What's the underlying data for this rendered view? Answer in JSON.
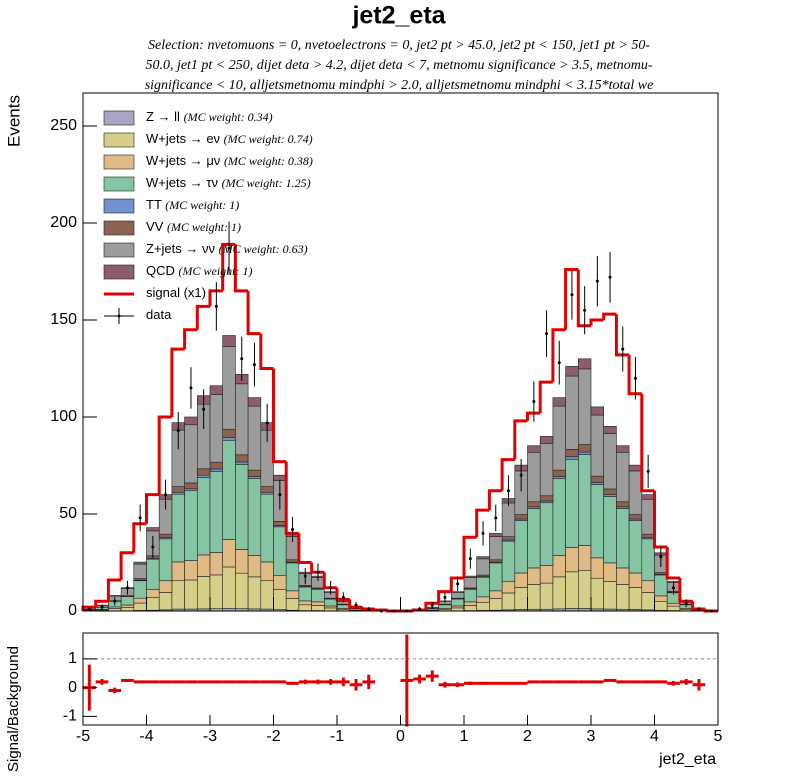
{
  "chart_data": [
    {
      "type": "stacked_histogram",
      "title": "jet2_eta",
      "subtitle": [
        "Selection: nvetomuons = 0, nvetoelectrons = 0, jet2 pt > 45.0, jet2 pt < 150, jet1 pt > 50-",
        "50.0, jet1 pt < 250, dijet deta > 4.2, dijet deta < 7, metnomu significance > 3.5, metnomu-",
        "significance < 10, alljetsmetnomu mindphi > 2.0, alljetsmetnomu mindphi < 3.15*total we"
      ],
      "y_label": "Events",
      "xlim": [
        -5,
        5
      ],
      "ylim": [
        0,
        267
      ],
      "yticks": [
        0,
        50,
        100,
        150,
        200,
        250
      ],
      "bins": [
        -5,
        -4.8,
        -4.6,
        -4.4,
        -4.2,
        -4,
        -3.8,
        -3.6,
        -3.4,
        -3.2,
        -3,
        -2.8,
        -2.6,
        -2.4,
        -2.2,
        -2,
        -1.8,
        -1.6,
        -1.4,
        -1.2,
        -1,
        -0.8,
        -0.6,
        -0.4,
        -0.2,
        0,
        0.2,
        0.4,
        0.6,
        0.8,
        1,
        1.2,
        1.4,
        1.6,
        1.8,
        2,
        2.2,
        2.4,
        2.6,
        2.8,
        3,
        3.2,
        3.4,
        3.6,
        3.8,
        4,
        4.2,
        4.4,
        4.6,
        4.8,
        5
      ],
      "series": [
        {
          "name": "Z → ll",
          "note": "(MC weight: 0.34)",
          "color": "#a9a5c5",
          "values": [
            0,
            0,
            0.1,
            0.1,
            0.3,
            0.4,
            0.6,
            1,
            1,
            1.1,
            1.2,
            1.4,
            1.2,
            1.1,
            1,
            0.7,
            0.4,
            0.2,
            0.2,
            0.1,
            0.1,
            0,
            0,
            0,
            0,
            0,
            0,
            0,
            0.1,
            0.1,
            0.2,
            0.3,
            0.4,
            0.6,
            0.8,
            0.9,
            0.9,
            1.1,
            1.3,
            1.3,
            1.1,
            1,
            0.9,
            0.8,
            0.6,
            0.3,
            0.2,
            0.1,
            0,
            0
          ]
        },
        {
          "name": "W+jets → eν",
          "note": "(MC weight: 0.74)",
          "color": "#d5cf8a",
          "values": [
            0.2,
            0.5,
            1.2,
            1.8,
            3.8,
            6.5,
            9,
            14.6,
            15,
            16.7,
            17.4,
            21.3,
            18.3,
            16.5,
            14.6,
            10.5,
            6,
            3,
            2.7,
            1.5,
            0.8,
            0.3,
            0.2,
            0.1,
            0,
            0,
            0.1,
            0.3,
            0.8,
            1.5,
            2.7,
            4.2,
            6,
            8.7,
            11.3,
            12.8,
            13.5,
            16.5,
            18.9,
            19.5,
            15.8,
            14.3,
            12.8,
            11.3,
            9,
            4.5,
            2.3,
            0.8,
            0.2,
            0
          ]
        },
        {
          "name": "W+jets → μν",
          "note": "(MC weight: 0.38)",
          "color": "#e0bb85",
          "values": [
            0.1,
            0.3,
            0.8,
            1.2,
            2.5,
            4.3,
            6,
            9.7,
            10,
            11.1,
            11.6,
            14.2,
            12.2,
            11,
            9.7,
            7,
            4,
            2,
            1.8,
            1,
            0.5,
            0.2,
            0.1,
            0.1,
            0,
            0,
            0.1,
            0.2,
            0.5,
            1,
            1.8,
            2.8,
            4,
            5.8,
            7.5,
            8.5,
            9,
            11,
            12.6,
            13,
            10.5,
            9.5,
            8.5,
            7.5,
            6,
            3,
            1.5,
            0.5,
            0.1,
            0
          ]
        },
        {
          "name": "W+jets → τν",
          "note": "(MC weight: 1.25)",
          "color": "#86c5a3",
          "values": [
            0.4,
            1.1,
            2.9,
            4.3,
            9,
            15.5,
            21.6,
            34.9,
            36,
            40,
            41.8,
            51.1,
            43.9,
            39.6,
            34.9,
            25.2,
            14.4,
            7.2,
            6.5,
            3.6,
            1.8,
            0.7,
            0.4,
            0.2,
            0,
            0,
            0.2,
            0.7,
            1.8,
            3.6,
            6.5,
            10.1,
            14.4,
            20.9,
            27,
            30.6,
            32.4,
            39.6,
            45.4,
            46.8,
            37.8,
            34.2,
            30.6,
            27,
            21.6,
            10.8,
            5.4,
            1.8,
            0.4,
            0
          ]
        },
        {
          "name": "TT",
          "note": "(MC weight: 1)",
          "color": "#7391cc",
          "values": [
            0,
            0,
            0.1,
            0.1,
            0.3,
            0.4,
            0.6,
            1,
            1,
            1.1,
            1.2,
            1.4,
            1.2,
            1.1,
            1,
            0.7,
            0.4,
            0.2,
            0.2,
            0.1,
            0.1,
            0,
            0,
            0,
            0,
            0,
            0,
            0,
            0.1,
            0.1,
            0.2,
            0.3,
            0.4,
            0.6,
            0.8,
            0.9,
            0.9,
            1.1,
            1.3,
            1.3,
            1.1,
            1,
            0.9,
            0.8,
            0.6,
            0.3,
            0.2,
            0.1,
            0,
            0
          ]
        },
        {
          "name": "VV",
          "note": "(MC weight: 1)",
          "color": "#8c6350",
          "values": [
            0,
            0.1,
            0.2,
            0.4,
            0.8,
            1.3,
            1.8,
            2.9,
            3,
            3.3,
            3.5,
            4.3,
            3.7,
            3.3,
            2.9,
            2.1,
            1.2,
            0.6,
            0.5,
            0.3,
            0.2,
            0.1,
            0,
            0,
            0,
            0,
            0,
            0.1,
            0.2,
            0.3,
            0.5,
            0.8,
            1.2,
            1.7,
            2.3,
            2.6,
            2.7,
            3.3,
            3.8,
            3.9,
            3.2,
            2.9,
            2.6,
            2.3,
            1.8,
            0.9,
            0.5,
            0.2,
            0,
            0
          ]
        },
        {
          "name": "Z+jets → νν",
          "note": "(MC weight: 0.63)",
          "color": "#9c9c9c",
          "values": [
            0.3,
            0.9,
            2.4,
            3.6,
            7.5,
            12.9,
            18,
            29.1,
            30,
            33.3,
            34.8,
            42.6,
            36.6,
            33,
            29.1,
            21,
            12,
            6,
            5.4,
            3,
            1.5,
            0.6,
            0.3,
            0.2,
            0,
            0,
            0.2,
            0.6,
            1.5,
            3,
            5.4,
            8.4,
            12,
            17.4,
            22.5,
            25.5,
            27,
            33,
            37.8,
            39,
            31.5,
            28.5,
            25.5,
            22.5,
            18,
            9,
            4.5,
            1.5,
            0.3,
            0
          ]
        },
        {
          "name": "QCD",
          "note": "(MC weight: 1)",
          "color": "#8c5d6a",
          "values": [
            0,
            0.1,
            0.3,
            0.5,
            1,
            1.7,
            2.4,
            3.9,
            4,
            4.4,
            4.6,
            5.7,
            4.9,
            4.4,
            3.9,
            2.8,
            1.6,
            0.8,
            0.7,
            0.4,
            0.2,
            0.1,
            0,
            0,
            0,
            0,
            0,
            0.1,
            0.2,
            0.4,
            0.7,
            1.1,
            1.6,
            2.3,
            3,
            3.4,
            3.6,
            4.4,
            5,
            5.2,
            4.2,
            3.8,
            3.4,
            3,
            2.4,
            1.2,
            0.6,
            0.2,
            0,
            0
          ]
        }
      ],
      "signal": {
        "name": "signal (x1)",
        "color": "#e00000",
        "values": [
          2,
          5,
          16,
          30,
          45,
          60,
          100,
          135,
          145,
          157,
          165,
          189,
          165,
          143,
          125,
          77,
          40,
          25,
          20,
          12,
          6,
          2,
          1,
          0.5,
          0,
          0,
          0.5,
          4,
          10,
          17,
          38,
          52,
          62,
          78,
          98,
          102,
          118,
          145,
          176,
          147,
          150,
          153,
          132,
          112,
          62,
          33,
          17,
          5,
          1,
          0
        ]
      },
      "data": {
        "name": "data",
        "color": "#000000",
        "values": [
          1,
          2,
          5,
          12,
          48,
          33,
          60,
          93,
          115,
          104,
          157,
          187,
          130,
          127,
          97,
          60,
          42,
          18,
          20,
          12,
          7,
          3,
          1,
          0,
          0,
          0,
          1,
          3,
          7,
          14,
          27,
          40,
          48,
          62,
          70,
          108,
          143,
          128,
          163,
          155,
          170,
          172,
          135,
          120,
          72,
          28,
          12,
          4,
          1,
          0
        ],
        "errors": [
          1,
          1.4,
          2.2,
          3.5,
          6.9,
          5.7,
          7.7,
          9.6,
          10.7,
          10.2,
          12.5,
          13.7,
          11.4,
          11.3,
          9.8,
          7.7,
          6.5,
          4.2,
          4.5,
          3.5,
          2.6,
          1.7,
          1,
          0,
          0,
          0,
          1,
          1.7,
          2.6,
          3.7,
          5.2,
          6.3,
          6.9,
          7.9,
          8.4,
          10.4,
          12,
          11.3,
          12.8,
          12.4,
          13,
          13.1,
          11.6,
          11,
          8.5,
          5.3,
          3.5,
          2,
          1,
          0
        ]
      }
    },
    {
      "type": "errorbar",
      "y_label": "Signal/Background",
      "x_label": "jet2_eta",
      "color": "#e00000",
      "xlim": [
        -5,
        5
      ],
      "xticks": [
        -5,
        -4,
        -3,
        -2,
        -1,
        0,
        1,
        2,
        3,
        4,
        5
      ],
      "ylim": [
        -1.3,
        1.9
      ],
      "yticks": [
        -1,
        0,
        1
      ],
      "reference_line": 1,
      "values": [
        0,
        0.2,
        -0.1,
        0.25,
        0.2,
        0.2,
        0.2,
        0.2,
        0.2,
        0.2,
        0.2,
        0.2,
        0.2,
        0.2,
        0.2,
        0.2,
        0.15,
        0.2,
        0.2,
        0.2,
        0.2,
        0.1,
        0.2,
        null,
        null,
        0.25,
        0.3,
        0.4,
        0.1,
        0.1,
        0.15,
        0.15,
        0.15,
        0.15,
        0.15,
        0.2,
        0.2,
        0.2,
        0.2,
        0.2,
        0.2,
        0.25,
        0.2,
        0.2,
        0.2,
        0.2,
        0.15,
        0.2,
        0.1,
        null
      ],
      "errors": [
        0.8,
        0.1,
        0.1,
        0.05,
        0.03,
        0.03,
        0.03,
        0.02,
        0.02,
        0.02,
        0.02,
        0.02,
        0.02,
        0.02,
        0.02,
        0.03,
        0.05,
        0.08,
        0.08,
        0.1,
        0.15,
        0.2,
        0.25,
        null,
        null,
        1.6,
        0.15,
        0.2,
        0.1,
        0.08,
        0.06,
        0.05,
        0.04,
        0.03,
        0.03,
        0.03,
        0.02,
        0.02,
        0.02,
        0.02,
        0.02,
        0.02,
        0.02,
        0.03,
        0.03,
        0.05,
        0.08,
        0.1,
        0.2,
        null
      ]
    }
  ]
}
